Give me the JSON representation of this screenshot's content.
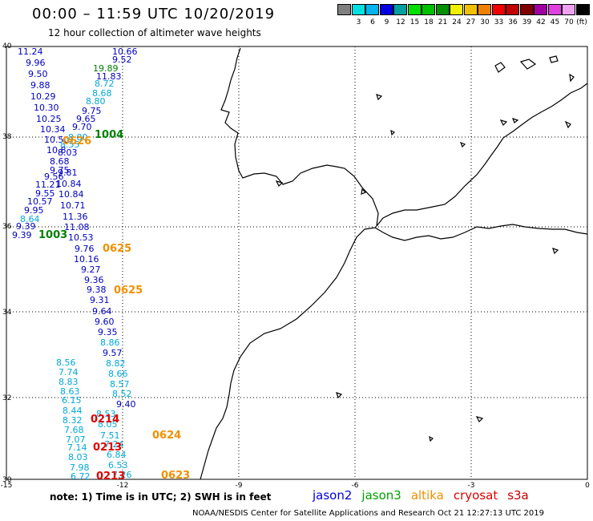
{
  "header": {
    "title": "00:00 – 11:59 UTC 10/20/2019",
    "subtitle": "12 hour collection of altimeter wave heights"
  },
  "legend": {
    "unit": "(ft)",
    "items": [
      {
        "label": "",
        "color": "#808080"
      },
      {
        "label": "3",
        "color": "#00e0e0"
      },
      {
        "label": "6",
        "color": "#00b4f0"
      },
      {
        "label": "9",
        "color": "#0000e0"
      },
      {
        "label": "12",
        "color": "#00a0a0"
      },
      {
        "label": "15",
        "color": "#00e000"
      },
      {
        "label": "18",
        "color": "#00c000"
      },
      {
        "label": "21",
        "color": "#009000"
      },
      {
        "label": "24",
        "color": "#f0f000"
      },
      {
        "label": "27",
        "color": "#f0c000"
      },
      {
        "label": "30",
        "color": "#f08000"
      },
      {
        "label": "33",
        "color": "#f00000"
      },
      {
        "label": "36",
        "color": "#c00000"
      },
      {
        "label": "39",
        "color": "#800000"
      },
      {
        "label": "42",
        "color": "#a000a0"
      },
      {
        "label": "45",
        "color": "#e040e0"
      },
      {
        "label": "70",
        "color": "#f0a0f0"
      },
      {
        "label": "",
        "color": "#000000"
      }
    ]
  },
  "axes": {
    "lat_labels": [
      "40",
      "38",
      "36",
      "34",
      "32",
      "30"
    ],
    "lon_labels": [
      "-15",
      "-12",
      "-9",
      "-6",
      "-3",
      "0"
    ]
  },
  "colors": {
    "dark_blue": "#0000c0",
    "cyan": "#00a8d8",
    "green": "#008000",
    "orange": "#f09000",
    "red": "#e00000",
    "coast": "#000000",
    "grid": "#000000"
  },
  "observations": [
    {
      "t": "11.24",
      "c": "dark_blue"
    },
    {
      "t": "10.66",
      "c": "dark_blue"
    },
    {
      "t": "9.96",
      "c": "dark_blue"
    },
    {
      "t": "9.52",
      "c": "dark_blue"
    },
    {
      "t": "19.89",
      "c": "green"
    },
    {
      "t": "9.50",
      "c": "dark_blue"
    },
    {
      "t": "11.83",
      "c": "dark_blue"
    },
    {
      "t": "9.88",
      "c": "dark_blue"
    },
    {
      "t": "8.72",
      "c": "cyan"
    },
    {
      "t": "10.29",
      "c": "dark_blue"
    },
    {
      "t": "8.68",
      "c": "cyan"
    },
    {
      "t": "8.80",
      "c": "cyan"
    },
    {
      "t": "10.30",
      "c": "dark_blue"
    },
    {
      "t": "9.75",
      "c": "dark_blue"
    },
    {
      "t": "10.25",
      "c": "dark_blue"
    },
    {
      "t": "9.65",
      "c": "dark_blue"
    },
    {
      "t": "9.70",
      "c": "dark_blue"
    },
    {
      "t": "10.34",
      "c": "dark_blue"
    },
    {
      "t": "10.50",
      "c": "dark_blue"
    },
    {
      "t": "8.80",
      "c": "cyan"
    },
    {
      "t": "8.55",
      "c": "cyan"
    },
    {
      "t": "10.8",
      "c": "dark_blue"
    },
    {
      "t": "8.03",
      "c": "dark_blue"
    },
    {
      "t": "8.68",
      "c": "dark_blue"
    },
    {
      "t": "9.75",
      "c": "dark_blue"
    },
    {
      "t": "9.81",
      "c": "dark_blue"
    },
    {
      "t": "9.56",
      "c": "dark_blue"
    },
    {
      "t": "11.21",
      "c": "dark_blue"
    },
    {
      "t": "10.84",
      "c": "dark_blue"
    },
    {
      "t": "9.55",
      "c": "dark_blue"
    },
    {
      "t": "10.84",
      "c": "dark_blue"
    },
    {
      "t": "10.57",
      "c": "dark_blue"
    },
    {
      "t": "10.71",
      "c": "dark_blue"
    },
    {
      "t": "9.95",
      "c": "dark_blue"
    },
    {
      "t": "11.36",
      "c": "dark_blue"
    },
    {
      "t": "8.64",
      "c": "cyan"
    },
    {
      "t": "9.39",
      "c": "dark_blue"
    },
    {
      "t": "11.08",
      "c": "dark_blue"
    },
    {
      "t": "9.39",
      "c": "dark_blue"
    },
    {
      "t": "10.53",
      "c": "dark_blue"
    },
    {
      "t": "9.76",
      "c": "dark_blue"
    },
    {
      "t": "10.16",
      "c": "dark_blue"
    },
    {
      "t": "9.27",
      "c": "dark_blue"
    },
    {
      "t": "9.36",
      "c": "dark_blue"
    },
    {
      "t": "9.38",
      "c": "dark_blue"
    },
    {
      "t": "9.31",
      "c": "dark_blue"
    },
    {
      "t": "9.64",
      "c": "dark_blue"
    },
    {
      "t": "9.60",
      "c": "dark_blue"
    },
    {
      "t": "9.35",
      "c": "dark_blue"
    },
    {
      "t": "8.86",
      "c": "cyan"
    },
    {
      "t": "9.57",
      "c": "dark_blue"
    },
    {
      "t": "8.56",
      "c": "cyan"
    },
    {
      "t": "8.82",
      "c": "cyan"
    },
    {
      "t": "7.74",
      "c": "cyan"
    },
    {
      "t": "8.66",
      "c": "cyan"
    },
    {
      "t": "8.83",
      "c": "cyan"
    },
    {
      "t": "8.57",
      "c": "cyan"
    },
    {
      "t": "8.63",
      "c": "cyan"
    },
    {
      "t": "8.52",
      "c": "cyan"
    },
    {
      "t": "6.15",
      "c": "cyan"
    },
    {
      "t": "9.40",
      "c": "dark_blue"
    },
    {
      "t": "8.44",
      "c": "cyan"
    },
    {
      "t": "8.53",
      "c": "cyan"
    },
    {
      "t": "8.32",
      "c": "cyan"
    },
    {
      "t": "8.05",
      "c": "cyan"
    },
    {
      "t": "7.68",
      "c": "cyan"
    },
    {
      "t": "7.51",
      "c": "cyan"
    },
    {
      "t": "7.07",
      "c": "cyan"
    },
    {
      "t": "7.24",
      "c": "cyan"
    },
    {
      "t": "7.14",
      "c": "cyan"
    },
    {
      "t": "6.84",
      "c": "cyan"
    },
    {
      "t": "8.03",
      "c": "cyan"
    },
    {
      "t": "6.53",
      "c": "cyan"
    },
    {
      "t": "7.98",
      "c": "cyan"
    },
    {
      "t": "7.26",
      "c": "cyan"
    },
    {
      "t": "6.72",
      "c": "cyan"
    }
  ],
  "time_markers": [
    {
      "t": "1004",
      "c": "green"
    },
    {
      "t": "0626",
      "c": "orange"
    },
    {
      "t": "1003",
      "c": "green"
    },
    {
      "t": "0625",
      "c": "orange"
    },
    {
      "t": "0625",
      "c": "orange"
    },
    {
      "t": "0214",
      "c": "red"
    },
    {
      "t": "0624",
      "c": "orange"
    },
    {
      "t": "0213",
      "c": "red"
    },
    {
      "t": "0213",
      "c": "red"
    },
    {
      "t": "0623",
      "c": "orange"
    }
  ],
  "note": "note:  1) Time is in UTC;  2) SWH is in feet",
  "satellites": [
    {
      "name": "jason2",
      "color": "#0000e0"
    },
    {
      "name": "jason3",
      "color": "#00a000"
    },
    {
      "name": "altika",
      "color": "#f09000"
    },
    {
      "name": "cryosat",
      "color": "#e00000"
    },
    {
      "name": "s3a",
      "color": "#c00000"
    }
  ],
  "footer": "NOAA/NESDIS Center for Satellite Applications and Research    Oct 21 12:27:13 UTC 2019"
}
